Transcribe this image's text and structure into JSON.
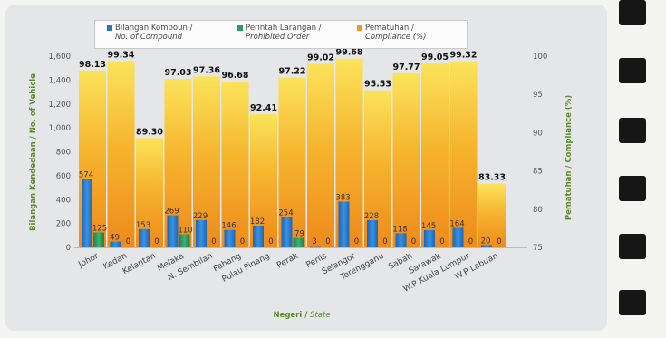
{
  "chart_data": {
    "type": "bar",
    "categories": [
      "Johor",
      "Kedah",
      "Kelantan",
      "Melaka",
      "N. Sembilan",
      "Pahang",
      "Pulau Pinang",
      "Perak",
      "Perlis",
      "Selangor",
      "Terengganu",
      "Sabah",
      "Sarawak",
      "W.P Kuala Lumpur",
      "W.P Labuan"
    ],
    "series": [
      {
        "name": "Bilangan Kompoun / No. of Compound",
        "axis": "left",
        "color": "#2577c8",
        "values": [
          574,
          49,
          153,
          269,
          229,
          146,
          182,
          254,
          3,
          383,
          228,
          118,
          145,
          164,
          20
        ]
      },
      {
        "name": "Perintah Larangan / Prohibited Order",
        "axis": "left",
        "color": "#2e9b63",
        "values": [
          125,
          0,
          0,
          110,
          0,
          0,
          0,
          79,
          0,
          0,
          0,
          0,
          0,
          0,
          0
        ]
      },
      {
        "name": "Pematuhan / Compliance (%)",
        "axis": "right",
        "color": "#f09a1c",
        "values": [
          98.13,
          99.34,
          89.3,
          97.03,
          97.36,
          96.68,
          92.41,
          97.22,
          99.02,
          99.68,
          95.53,
          97.77,
          99.05,
          99.32,
          83.33
        ]
      }
    ],
    "bar_labels": {
      "compound": [
        "574",
        "49",
        "153",
        "269",
        "229",
        "146",
        "182",
        "254",
        "3",
        "383",
        "228",
        "118",
        "145",
        "164",
        "20"
      ],
      "prohibited": [
        "125",
        "0",
        "0",
        "110",
        "0",
        "0",
        "0",
        "79",
        "0",
        "0",
        "0",
        "0",
        "0",
        "0",
        "0"
      ],
      "compliance": [
        "98.13",
        "99.34",
        "89.30",
        "97.03",
        "97.36",
        "96.68",
        "92.41",
        "97.22",
        "99.02",
        "99.68",
        "95.53",
        "97.77",
        "99.05",
        "99.32",
        "83.33"
      ]
    },
    "ylim_left": [
      0,
      1600
    ],
    "yticks_left": [
      "0",
      "200",
      "400",
      "600",
      "800",
      "1,000",
      "1,200",
      "1,400",
      "1,600"
    ],
    "ylim_right": [
      75,
      100
    ],
    "yticks_right": [
      "75",
      "80",
      "85",
      "90",
      "95",
      "100"
    ],
    "ylabel_left": "Bilangan Kendedaan / No. of Vehicle",
    "ylabel_right": "Pematuhan / Compliance (%)",
    "xlabel_main": "Negeri /",
    "xlabel_italic": " State",
    "legend": [
      {
        "main": "Bilangan Kompoun /",
        "sub": "No. of Compound",
        "color": "#2577c8"
      },
      {
        "main": "Perintah Larangan /",
        "sub": "Prohibited Order",
        "color": "#2e9b63"
      },
      {
        "main": "Pematuhan /",
        "sub": "Compliance (%)",
        "color": "#f09a1c"
      }
    ],
    "legend_position": "top",
    "grid": false
  }
}
